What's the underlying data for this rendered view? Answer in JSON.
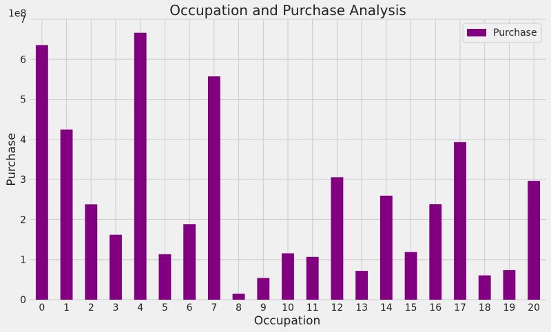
{
  "chart_data": {
    "type": "bar",
    "title": "Occupation and Purchase Analysis",
    "xlabel": "Occupation",
    "ylabel": "Purchase",
    "y_offset_label": "1e8",
    "y_scale": 100000000,
    "categories": [
      "0",
      "1",
      "2",
      "3",
      "4",
      "5",
      "6",
      "7",
      "8",
      "9",
      "10",
      "11",
      "12",
      "13",
      "14",
      "15",
      "16",
      "17",
      "18",
      "19",
      "20"
    ],
    "series": [
      {
        "name": "Purchase",
        "color": "#800080",
        "values": [
          635400000,
          424600000,
          238000000,
          162000000,
          666200000,
          113600000,
          188400000,
          557400000,
          14700000,
          54300000,
          115800000,
          106800000,
          305400000,
          71900000,
          259500000,
          118900000,
          238300000,
          393300000,
          60700000,
          73700000,
          296600000
        ]
      }
    ],
    "ylim": [
      0,
      700000000
    ],
    "yticks": [
      0,
      100000000,
      200000000,
      300000000,
      400000000,
      500000000,
      600000000,
      700000000
    ],
    "ytick_labels": [
      "0",
      "1",
      "2",
      "3",
      "4",
      "5",
      "6",
      "7"
    ],
    "grid": true,
    "legend_position": "top-right"
  }
}
